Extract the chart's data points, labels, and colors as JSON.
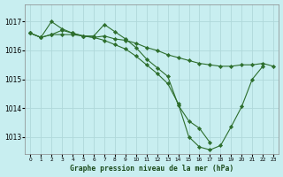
{
  "title": "Graphe pression niveau de la mer (hPa)",
  "bg_color": "#c8eef0",
  "grid_color": "#b0d8da",
  "line_color": "#2d6e2d",
  "xlim": [
    -0.5,
    23.5
  ],
  "ylim": [
    1012.4,
    1017.6
  ],
  "yticks": [
    1013,
    1014,
    1015,
    1016,
    1017
  ],
  "xticks": [
    0,
    1,
    2,
    3,
    4,
    5,
    6,
    7,
    8,
    9,
    10,
    11,
    12,
    13,
    14,
    15,
    16,
    17,
    18,
    19,
    20,
    21,
    22,
    23
  ],
  "series": [
    {
      "x": [
        0,
        1,
        2,
        3,
        4,
        5,
        6,
        7,
        8,
        9,
        10,
        11,
        12,
        13,
        14,
        15,
        16,
        17,
        18,
        19,
        20,
        21,
        22,
        23
      ],
      "y": [
        1016.6,
        1016.45,
        1016.55,
        1016.55,
        1016.55,
        1016.5,
        1016.45,
        1016.5,
        1016.4,
        1016.35,
        1016.25,
        1016.1,
        1016.0,
        1015.85,
        1015.75,
        1015.65,
        1015.55,
        1015.5,
        1015.45,
        1015.45,
        1015.5,
        1015.5,
        1015.55,
        1015.45
      ],
      "marker": true
    },
    {
      "x": [
        0,
        1,
        2,
        3,
        4,
        5,
        6,
        7,
        8,
        9,
        10,
        11,
        12,
        13,
        14,
        15,
        16,
        17,
        18,
        19,
        20,
        21,
        22,
        23
      ],
      "y": [
        1016.6,
        1016.45,
        1016.55,
        1016.7,
        1016.6,
        1016.5,
        1016.45,
        1016.35,
        1016.2,
        1016.05,
        1015.8,
        1015.5,
        1015.2,
        1014.85,
        1014.15,
        1013.0,
        1012.65,
        1012.55,
        1012.7,
        1013.35,
        1014.05,
        1015.0,
        1015.45,
        null
      ],
      "marker": true
    },
    {
      "x": [
        0,
        1,
        2,
        3,
        4,
        5,
        6,
        7,
        8,
        9,
        10,
        11,
        12,
        13,
        14,
        15,
        16,
        17,
        18,
        19,
        20,
        21,
        22,
        23
      ],
      "y": [
        1016.6,
        1016.45,
        1017.0,
        1016.75,
        1016.6,
        1016.5,
        1016.5,
        1016.9,
        1016.65,
        1016.4,
        1016.1,
        1015.7,
        1015.4,
        1015.1,
        1014.1,
        1013.55,
        1013.3,
        1012.8,
        null,
        null,
        null,
        null,
        null,
        null
      ],
      "marker": true
    }
  ]
}
